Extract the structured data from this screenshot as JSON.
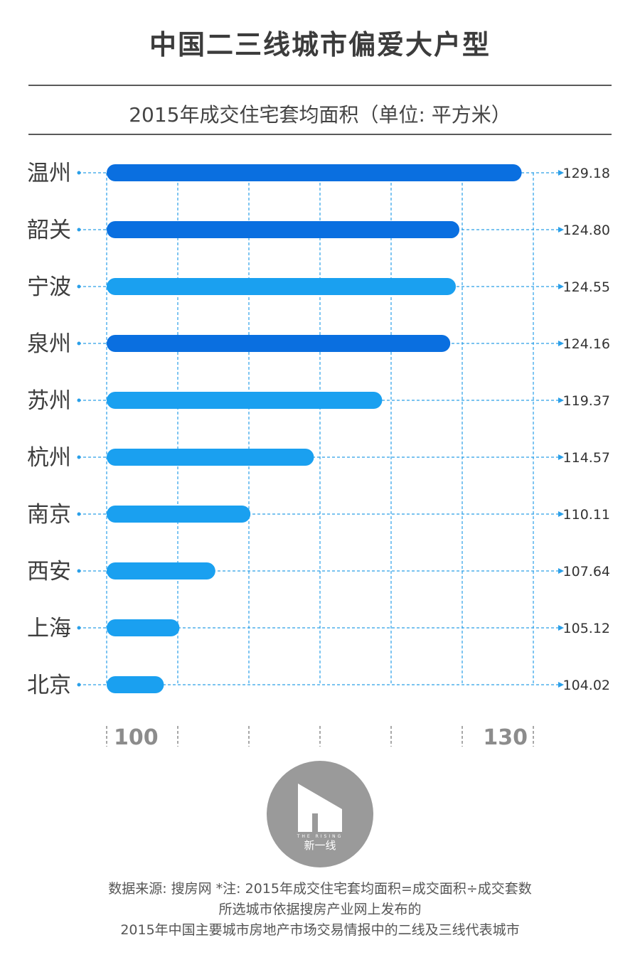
{
  "title": "中国二三线城市偏爱大户型",
  "subtitle": "2015年成交住宅套均面积（单位: 平方米）",
  "chart_data": {
    "type": "bar",
    "orientation": "horizontal",
    "categories": [
      "温州",
      "韶关",
      "宁波",
      "泉州",
      "苏州",
      "杭州",
      "南京",
      "西安",
      "上海",
      "北京"
    ],
    "values": [
      129.18,
      124.8,
      124.55,
      124.16,
      119.37,
      114.57,
      110.11,
      107.64,
      105.12,
      104.02
    ],
    "value_labels": [
      "129.18",
      "124.80",
      "124.55",
      "124.16",
      "119.37",
      "114.57",
      "110.11",
      "107.64",
      "105.12",
      "104.02"
    ],
    "bar_colors": [
      "#0a6fe0",
      "#0a6fe0",
      "#1aa0f0",
      "#0a6fe0",
      "#1aa0f0",
      "#1aa0f0",
      "#1aa0f0",
      "#1aa0f0",
      "#1aa0f0",
      "#1aa0f0"
    ],
    "xlim": [
      100,
      130
    ],
    "grid_step": 5,
    "x_tick_labels": [
      "100",
      "130"
    ],
    "grid": true
  },
  "logo": {
    "caption": "新一线",
    "tagline": "THE RISING",
    "icon": "the-rising-logo-icon",
    "color": "#9a9a9a"
  },
  "footer": {
    "line1": "数据来源: 搜房网   *注: 2015年成交住宅套均面积=成交面积÷成交套数",
    "line2": "所选城市依据搜房产业网上发布的",
    "line3": "2015年中国主要城市房地产市场交易情报中的二线及三线代表城市"
  },
  "colors": {
    "grid": "#2a9fe8",
    "text": "#444444",
    "axis_text": "#8c8c8c"
  }
}
